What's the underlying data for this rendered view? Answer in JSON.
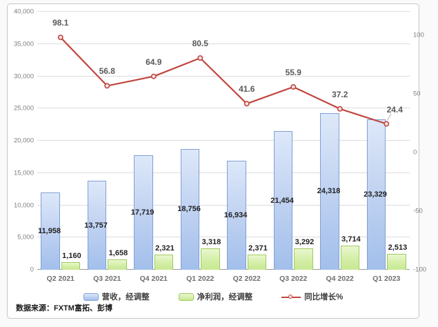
{
  "chart_data": {
    "type": "combo",
    "title": "",
    "categories": [
      "Q2 2021",
      "Q3 2021",
      "Q4 2021",
      "Q1 2022",
      "Q2 2022",
      "Q3 2022",
      "Q4 2022",
      "Q1 2023"
    ],
    "series": [
      {
        "name": "营收，经调整",
        "type": "bar",
        "axis": "left",
        "values": [
          11958,
          13757,
          17719,
          18756,
          16934,
          21454,
          24318,
          23329
        ],
        "fill_top": "#dde8f9",
        "fill_bottom": "#a2bfeb",
        "border": "#7f9fd4"
      },
      {
        "name": "净利润，经调整",
        "type": "bar",
        "axis": "left",
        "values": [
          1160,
          1658,
          2321,
          3318,
          2371,
          3292,
          3714,
          2513
        ],
        "fill_top": "#eaf7d0",
        "fill_bottom": "#c8e893",
        "border": "#a0c961"
      },
      {
        "name": "同比增长%",
        "type": "line",
        "axis": "right",
        "values": [
          98.1,
          56.8,
          64.9,
          80.5,
          41.6,
          55.9,
          37.2,
          24.4
        ],
        "color": "#c0453f",
        "marker_fill": "#f6e3e2"
      }
    ],
    "left_axis": {
      "min": 0,
      "max": 40000,
      "tick_step": 5000,
      "tick_labels": [
        "0",
        "5,000",
        "10,000",
        "15,000",
        "20,000",
        "25,000",
        "30,000",
        "35,000",
        "40,000"
      ]
    },
    "right_axis": {
      "min": -100,
      "max": 120,
      "ticks": [
        {
          "value": 100,
          "label": "100"
        },
        {
          "value": 50,
          "label": "50"
        },
        {
          "value": 0,
          "label": "0"
        },
        {
          "value": -50,
          "label": "-50"
        },
        {
          "value": -100,
          "label": "-100"
        }
      ]
    },
    "grid": true,
    "legend_position": "bottom"
  },
  "footer": {
    "source": "数据来源：FXTM富拓、彭博"
  }
}
